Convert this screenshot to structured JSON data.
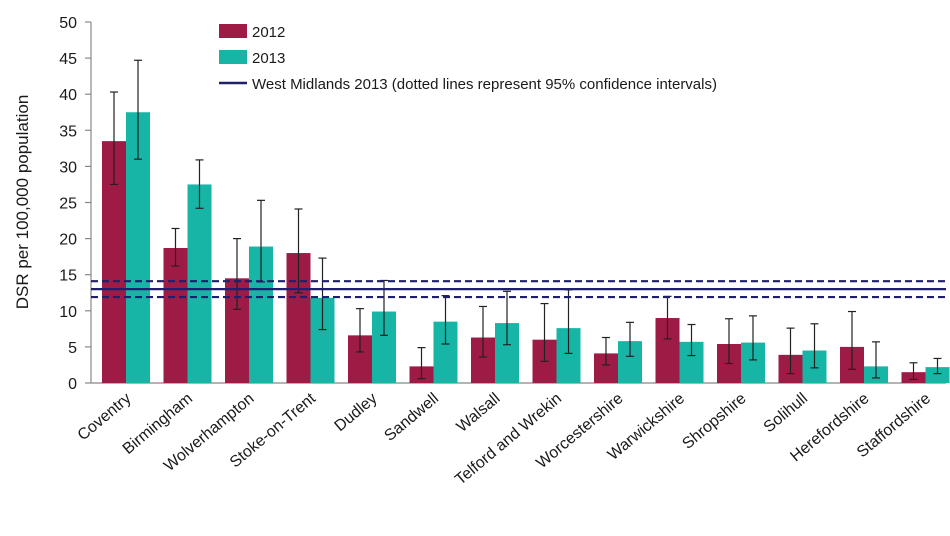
{
  "chart_data": {
    "type": "bar",
    "ylabel": "DSR per 100,000 population",
    "xlabel": "",
    "ylim": [
      0,
      50
    ],
    "yticks": [
      0,
      5,
      10,
      15,
      20,
      25,
      30,
      35,
      40,
      45,
      50
    ],
    "grid": false,
    "legend_position": "top",
    "categories": [
      "Coventry",
      "Birmingham",
      "Wolverhampton",
      "Stoke-on-Trent",
      "Dudley",
      "Sandwell",
      "Walsall",
      "Telford and Wrekin",
      "Worcestershire",
      "Warwickshire",
      "Shropshire",
      "Solihull",
      "Herefordshire",
      "Staffordshire"
    ],
    "series": [
      {
        "name": "2012",
        "color": "#9e1b45",
        "values": [
          33.5,
          18.7,
          14.5,
          18.0,
          6.6,
          2.3,
          6.3,
          6.0,
          4.1,
          9.0,
          5.4,
          3.9,
          5.0,
          1.5
        ],
        "error_low": [
          27.5,
          16.2,
          10.2,
          12.5,
          4.3,
          0.6,
          3.6,
          3.0,
          2.5,
          6.1,
          2.7,
          1.3,
          1.9,
          0.5
        ],
        "error_high": [
          40.3,
          21.4,
          20.0,
          24.1,
          10.3,
          4.9,
          10.6,
          11.0,
          6.3,
          12.0,
          8.9,
          7.6,
          9.9,
          2.8
        ]
      },
      {
        "name": "2013",
        "color": "#17b5a6",
        "values": [
          37.5,
          27.5,
          18.9,
          11.8,
          9.9,
          8.5,
          8.3,
          7.6,
          5.8,
          5.7,
          5.6,
          4.5,
          2.3,
          2.2
        ],
        "error_low": [
          31.0,
          24.2,
          14.0,
          7.4,
          6.6,
          5.4,
          5.3,
          4.1,
          3.7,
          3.8,
          3.2,
          2.1,
          0.7,
          1.3
        ],
        "error_high": [
          44.7,
          30.9,
          25.3,
          17.3,
          14.2,
          12.1,
          12.7,
          12.9,
          8.4,
          8.1,
          9.3,
          8.2,
          5.7,
          3.4
        ]
      }
    ],
    "reference_line": {
      "name": "West Midlands 2013 (dotted lines represent 95% confidence intervals)",
      "color": "#1f1f6b",
      "value": 13.0,
      "ci_low": 11.9,
      "ci_high": 14.1
    }
  }
}
